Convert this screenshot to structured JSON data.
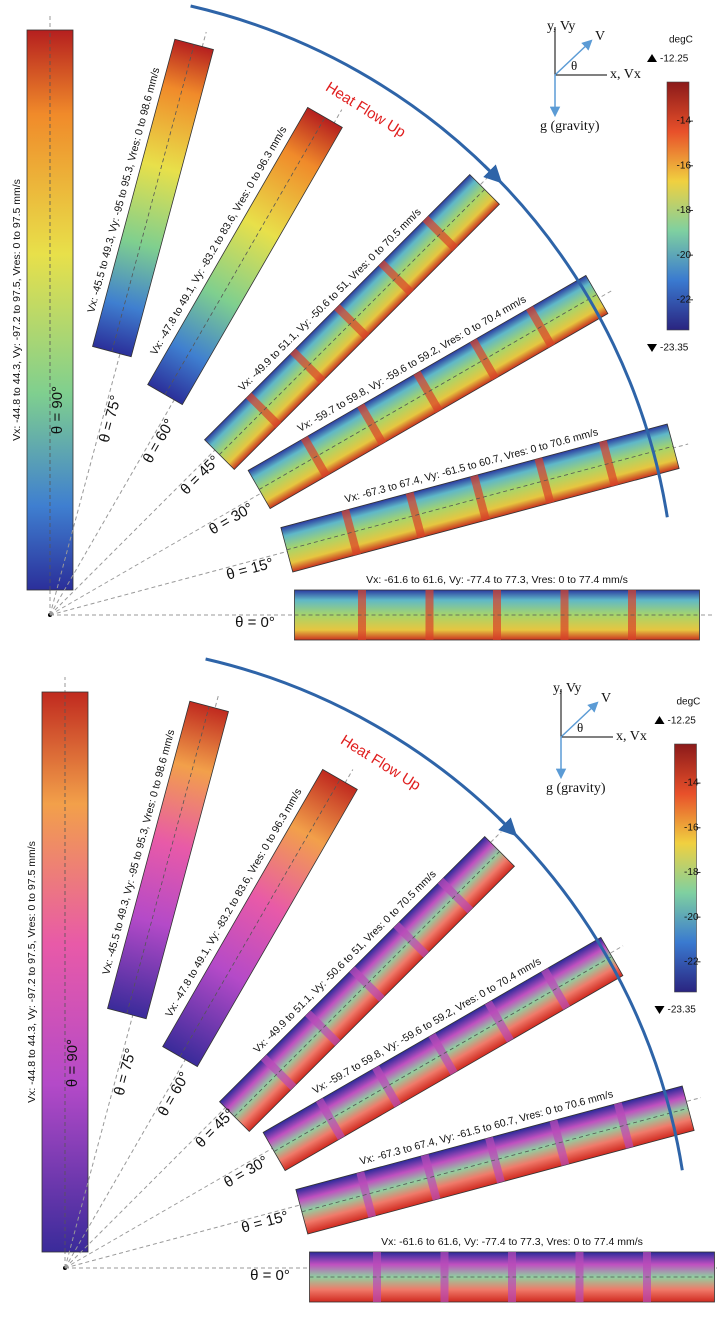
{
  "panels": [
    {
      "angles": [
        {
          "angle": 90,
          "label": "θ = 90°",
          "velocity": "Vx: -44.8 to 44.3, Vy: -97.2 to 97.5, Vres: 0 to 97.5 mm/s"
        },
        {
          "angle": 75,
          "label": "θ = 75°",
          "velocity": "Vx: -45.5 to 49.3, Vy: -95 to 95.3, Vres: 0 to 98.6 mm/s"
        },
        {
          "angle": 60,
          "label": "θ = 60°",
          "velocity": "Vx: -47.8 to 49.1, Vy: -83.2 to 83.6, Vres: 0 to 96.3 mm/s"
        },
        {
          "angle": 45,
          "label": "θ = 45°",
          "velocity": "Vx: -49.9 to 51.1, Vy: -50.6 to 51, Vres: 0 to 70.5 mm/s"
        },
        {
          "angle": 30,
          "label": "θ = 30°",
          "velocity": "Vx: -59.7 to 59.8, Vy: -59.6 to 59.2, Vres: 0 to 70.4 mm/s"
        },
        {
          "angle": 15,
          "label": "θ = 15°",
          "velocity": "Vx: -67.3 to 67.4, Vy: -61.5 to 60.7, Vres: 0 to 70.6 mm/s"
        },
        {
          "angle": 0,
          "label": "θ = 0°",
          "velocity": "Vx: -61.6 to 61.6, Vy: -77.4 to 77.3, Vres: 0 to 77.4 mm/s"
        }
      ],
      "heat_flow": "Heat Flow Up",
      "axes": {
        "y": "y, Vy",
        "v": "V",
        "theta": "θ",
        "x": "x, Vx",
        "g": "g (gravity)"
      },
      "colorbar": {
        "unit": "degC",
        "max": -12.25,
        "min": -23.35,
        "ticks": [
          -14,
          -16,
          -18,
          -20,
          -22
        ]
      }
    },
    {
      "angles": [
        {
          "angle": 90,
          "label": "θ = 90°",
          "velocity": "Vx: -44.8 to 44.3, Vy: -97.2 to 97.5, Vres: 0 to 97.5 mm/s"
        },
        {
          "angle": 75,
          "label": "θ = 75°",
          "velocity": "Vx: -45.5 to 49.3, Vy: -95 to 95.3, Vres: 0 to 98.6 mm/s"
        },
        {
          "angle": 60,
          "label": "θ = 60°",
          "velocity": "Vx: -47.8 to 49.1, Vy: -83.2 to 83.6, Vres: 0 to 96.3 mm/s"
        },
        {
          "angle": 45,
          "label": "θ = 45°",
          "velocity": "Vx: -49.9 to 51.1, Vy: -50.6 to 51, Vres: 0 to 70.5 mm/s"
        },
        {
          "angle": 30,
          "label": "θ = 30°",
          "velocity": "Vx: -59.7 to 59.8, Vy: -59.6 to 59.2, Vres: 0 to 70.4 mm/s"
        },
        {
          "angle": 15,
          "label": "θ = 15°",
          "velocity": "Vx: -67.3 to 67.4, Vy: -61.5 to 60.7, Vres: 0 to 70.6 mm/s"
        },
        {
          "angle": 0,
          "label": "θ = 0°",
          "velocity": "Vx: -61.6 to 61.6, Vy: -77.4 to 77.3, Vres: 0 to 77.4 mm/s"
        }
      ],
      "heat_flow": "Heat Flow Up",
      "axes": {
        "y": "y, Vy",
        "v": "V",
        "theta": "θ",
        "x": "x, Vx",
        "g": "g (gravity)"
      },
      "colorbar": {
        "unit": "degC",
        "max": -12.25,
        "min": -23.35,
        "ticks": [
          -14,
          -16,
          -18,
          -20,
          -22
        ]
      }
    }
  ]
}
